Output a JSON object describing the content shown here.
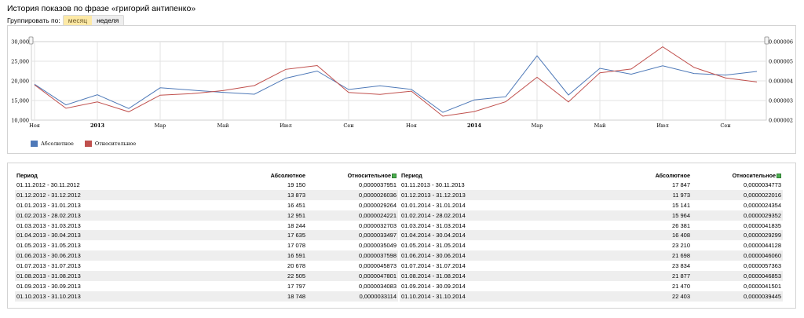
{
  "page": {
    "title": "История показов по фразе «григорий антипенко»"
  },
  "group_by": {
    "label": "Группировать по:",
    "options": [
      "месяц",
      "неделя"
    ],
    "selected": "месяц"
  },
  "chart_data": {
    "type": "line",
    "x": [
      "11.2012",
      "12.2012",
      "01.2013",
      "02.2013",
      "03.2013",
      "04.2013",
      "05.2013",
      "06.2013",
      "07.2013",
      "08.2013",
      "09.2013",
      "10.2013",
      "11.2013",
      "12.2013",
      "01.2014",
      "02.2014",
      "03.2014",
      "04.2014",
      "05.2014",
      "06.2014",
      "07.2014",
      "08.2014",
      "09.2014",
      "10.2014"
    ],
    "x_tick_labels": [
      "Ноя",
      "2013",
      "Мар",
      "Май",
      "Июл",
      "Сен",
      "Ноя",
      "2014",
      "Мар",
      "Май",
      "Июл",
      "Сен"
    ],
    "y_left_ticks": [
      "30,000",
      "25,000",
      "20,000",
      "15,000",
      "10,000"
    ],
    "y_left_range": [
      10000,
      30000
    ],
    "y_right_ticks": [
      "0.000006",
      "0.000005",
      "0.000004",
      "0.000003",
      "0.000002"
    ],
    "y_right_range": [
      2e-06,
      6e-06
    ],
    "series": [
      {
        "name": "Абсолютное",
        "color": "#4e79b8",
        "axis": "left",
        "values": [
          19150,
          13873,
          16451,
          12951,
          18244,
          17635,
          17078,
          16591,
          20678,
          22505,
          17797,
          18748,
          17847,
          11973,
          15141,
          15964,
          26381,
          16408,
          23210,
          21698,
          23834,
          21877,
          21470,
          22403
        ]
      },
      {
        "name": "Относительное",
        "color": "#c0504d",
        "axis": "right",
        "values": [
          3.7951e-06,
          2.6036e-06,
          2.9264e-06,
          2.4221e-06,
          3.2703e-06,
          3.3497e-06,
          3.5049e-06,
          3.7598e-06,
          4.5873e-06,
          4.7801e-06,
          3.4083e-06,
          3.3114e-06,
          3.4773e-06,
          2.2016e-06,
          2.4354e-06,
          2.9352e-06,
          4.1835e-06,
          2.9299e-06,
          4.4128e-06,
          4.606e-06,
          5.7363e-06,
          4.6853e-06,
          4.1501e-06,
          3.9445e-06
        ]
      }
    ]
  },
  "table": {
    "headers": {
      "period": "Период",
      "absolute": "Абсолютное",
      "relative": "Относительное"
    },
    "left_rows": [
      [
        "01.11.2012 - 30.11.2012",
        "19 150",
        "0,0000037951"
      ],
      [
        "01.12.2012 - 31.12.2012",
        "13 873",
        "0,0000026036"
      ],
      [
        "01.01.2013 - 31.01.2013",
        "16 451",
        "0,0000029264"
      ],
      [
        "01.02.2013 - 28.02.2013",
        "12 951",
        "0,0000024221"
      ],
      [
        "01.03.2013 - 31.03.2013",
        "18 244",
        "0,0000032703"
      ],
      [
        "01.04.2013 - 30.04.2013",
        "17 635",
        "0,0000033497"
      ],
      [
        "01.05.2013 - 31.05.2013",
        "17 078",
        "0,0000035049"
      ],
      [
        "01.06.2013 - 30.06.2013",
        "16 591",
        "0,0000037598"
      ],
      [
        "01.07.2013 - 31.07.2013",
        "20 678",
        "0,0000045873"
      ],
      [
        "01.08.2013 - 31.08.2013",
        "22 505",
        "0,0000047801"
      ],
      [
        "01.09.2013 - 30.09.2013",
        "17 797",
        "0,0000034083"
      ],
      [
        "01.10.2013 - 31.10.2013",
        "18 748",
        "0,0000033114"
      ]
    ],
    "right_rows": [
      [
        "01.11.2013 - 30.11.2013",
        "17 847",
        "0,0000034773"
      ],
      [
        "01.12.2013 - 31.12.2013",
        "11 973",
        "0,0000022016"
      ],
      [
        "01.01.2014 - 31.01.2014",
        "15 141",
        "0,0000024354"
      ],
      [
        "01.02.2014 - 28.02.2014",
        "15 964",
        "0,0000029352"
      ],
      [
        "01.03.2014 - 31.03.2014",
        "26 381",
        "0,0000041835"
      ],
      [
        "01.04.2014 - 30.04.2014",
        "16 408",
        "0,0000029299"
      ],
      [
        "01.05.2014 - 31.05.2014",
        "23 210",
        "0,0000044128"
      ],
      [
        "01.06.2014 - 30.06.2014",
        "21 698",
        "0,0000046060"
      ],
      [
        "01.07.2014 - 31.07.2014",
        "23 834",
        "0,0000057363"
      ],
      [
        "01.08.2014 - 31.08.2014",
        "21 877",
        "0,0000046853"
      ],
      [
        "01.09.2014 - 30.09.2014",
        "21 470",
        "0,0000041501"
      ],
      [
        "01.10.2014 - 31.10.2014",
        "22 403",
        "0,0000039445"
      ]
    ]
  },
  "colors": {
    "absolute": "#4e79b8",
    "relative": "#c0504d",
    "row_shade": "#eeeeee",
    "active_option": "#fde9a6"
  }
}
